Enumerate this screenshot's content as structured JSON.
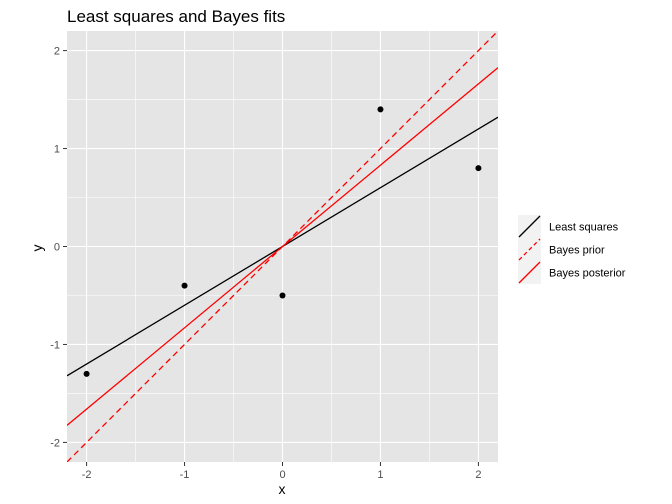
{
  "chart_data": {
    "type": "scatter",
    "title": "Least squares and Bayes fits",
    "xlabel": "x",
    "ylabel": "y",
    "xlim": [
      -2.2,
      2.2
    ],
    "ylim": [
      -2.2,
      2.2
    ],
    "x_ticks": [
      -2,
      -1,
      0,
      1,
      2
    ],
    "y_ticks": [
      -2,
      -1,
      0,
      1,
      2
    ],
    "x_tick_labels": [
      "-2",
      "-1",
      "0",
      "1",
      "2"
    ],
    "y_tick_labels": [
      "-2",
      "-1",
      "0",
      "1",
      "2"
    ],
    "grid": true,
    "legend_position": "right",
    "points": {
      "x": [
        -2,
        -1,
        0,
        1,
        2
      ],
      "y": [
        -1.3,
        -0.4,
        -0.5,
        1.4,
        0.8
      ]
    },
    "lines": [
      {
        "name": "Least squares",
        "intercept": 0,
        "slope": 0.6,
        "color": "#000000",
        "dash": "solid"
      },
      {
        "name": "Bayes prior",
        "intercept": 0,
        "slope": 1.0,
        "color": "#ff0000",
        "dash": "dashed"
      },
      {
        "name": "Bayes posterior",
        "intercept": 0,
        "slope": 0.83,
        "color": "#ff0000",
        "dash": "solid"
      }
    ],
    "colors": {
      "panel": "#e5e5e5",
      "grid": "#ffffff",
      "legend_key": "#f2f2f2",
      "point": "#000000"
    }
  }
}
